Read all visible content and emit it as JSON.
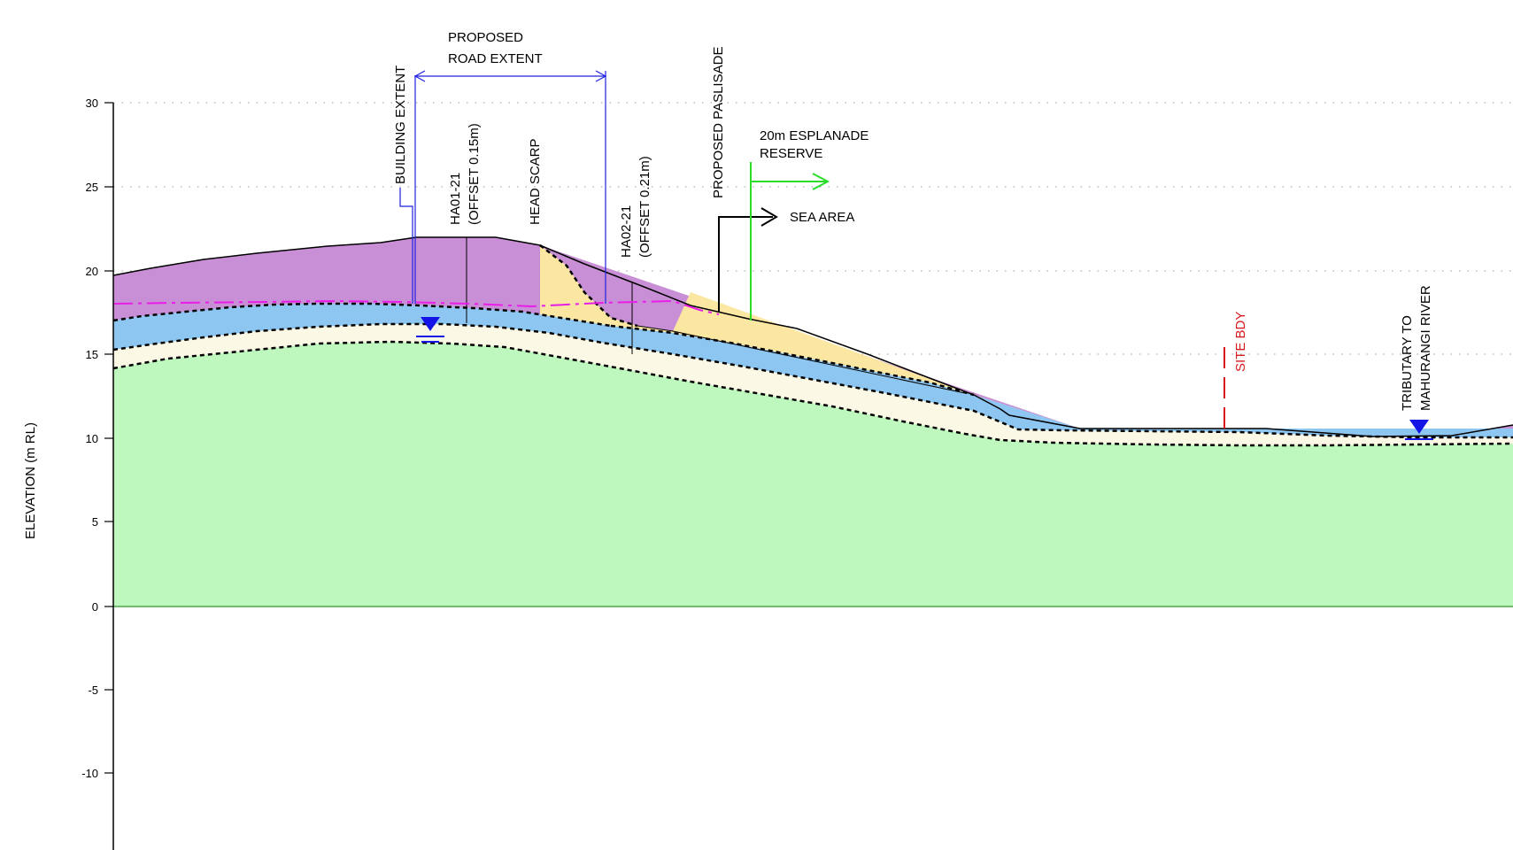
{
  "axis": {
    "ylabel": "ELEVATION (m RL)",
    "ticks": [
      "30",
      "25",
      "20",
      "15",
      "10",
      "5",
      "0",
      "-5",
      "-10"
    ]
  },
  "labels": {
    "road_extent_line1": "PROPOSED",
    "road_extent_line2": "ROAD EXTENT",
    "building_extent": "BUILDING EXTENT",
    "ha01_line1": "HA01-21",
    "ha01_line2": "(OFFSET 0.15m)",
    "head_scarp": "HEAD SCARP",
    "ha02_line1": "HA02-21",
    "ha02_line2": "(OFFSET 0.21m)",
    "palisade": "PROPOSED PASLISADE",
    "esplanade_line1": "20m ESPLANADE",
    "esplanade_line2": "RESERVE",
    "sea_area": "SEA AREA",
    "site_bdy": "SITE BDY",
    "tributary_line1": "TRIBUTARY TO",
    "tributary_line2": "MAHURANGI RIVER"
  },
  "colors": {
    "fill_purple": "#c98fd6",
    "fill_yellow": "#fbe6a2",
    "fill_blue": "#8ec6f2",
    "fill_cream": "#fbf8e6",
    "fill_green": "#bff8bf",
    "road_blue": "#1f22e0",
    "groundwater_pink": "#e81ee8",
    "esplanade_green": "#29dd29",
    "site_bdy_red": "#d9181e",
    "water_marker_blue": "#1414e6"
  }
}
